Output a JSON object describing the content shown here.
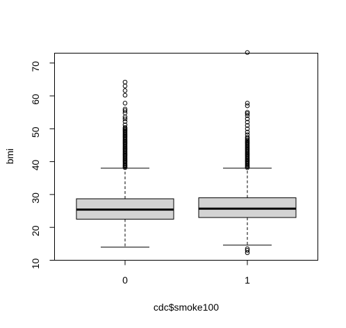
{
  "chart_data": {
    "type": "boxplot",
    "title": "",
    "xlabel": "cdc$smoke100",
    "ylabel": "bmi",
    "categories": [
      "0",
      "1"
    ],
    "ylim": [
      10,
      73
    ],
    "yticks": [
      10,
      20,
      30,
      40,
      50,
      60,
      70
    ],
    "grid": false,
    "box_fill": "#d3d3d3",
    "line_color": "#000000",
    "boxes": [
      {
        "category": "0",
        "whisker_low": 14,
        "q1": 22.5,
        "median": 25.4,
        "q3": 28.7,
        "whisker_high": 38,
        "outliers": [
          38.2,
          38.5,
          38.8,
          39.0,
          39.3,
          39.6,
          39.9,
          40.2,
          40.5,
          40.8,
          41.1,
          41.4,
          41.7,
          42.0,
          42.3,
          42.6,
          42.9,
          43.2,
          43.5,
          43.8,
          44.1,
          44.4,
          44.7,
          45.0,
          45.3,
          45.6,
          45.9,
          46.2,
          46.5,
          46.8,
          47.1,
          47.4,
          47.7,
          48.0,
          48.3,
          48.6,
          48.9,
          49.2,
          49.5,
          49.8,
          50.1,
          50.4,
          51.2,
          52.2,
          53.0,
          53.6,
          54.8,
          55.5,
          56.0,
          57.8,
          60.2,
          61.6,
          63.0,
          64.2
        ]
      },
      {
        "category": "1",
        "whisker_low": 14.6,
        "q1": 23.0,
        "median": 25.7,
        "q3": 29.0,
        "whisker_high": 38,
        "outliers": [
          12.3,
          13.0,
          13.5,
          38.2,
          38.5,
          38.8,
          39.1,
          39.4,
          39.7,
          40.0,
          40.3,
          40.6,
          40.9,
          41.2,
          41.5,
          41.8,
          42.1,
          42.4,
          42.7,
          43.0,
          43.3,
          43.6,
          43.9,
          44.2,
          44.5,
          44.8,
          45.1,
          45.4,
          45.7,
          46.0,
          46.3,
          46.6,
          47.0,
          47.4,
          48.2,
          49.0,
          50.0,
          51.0,
          52.0,
          53.0,
          54.0,
          54.6,
          55.0,
          57.0,
          57.8,
          73.2
        ]
      }
    ]
  }
}
